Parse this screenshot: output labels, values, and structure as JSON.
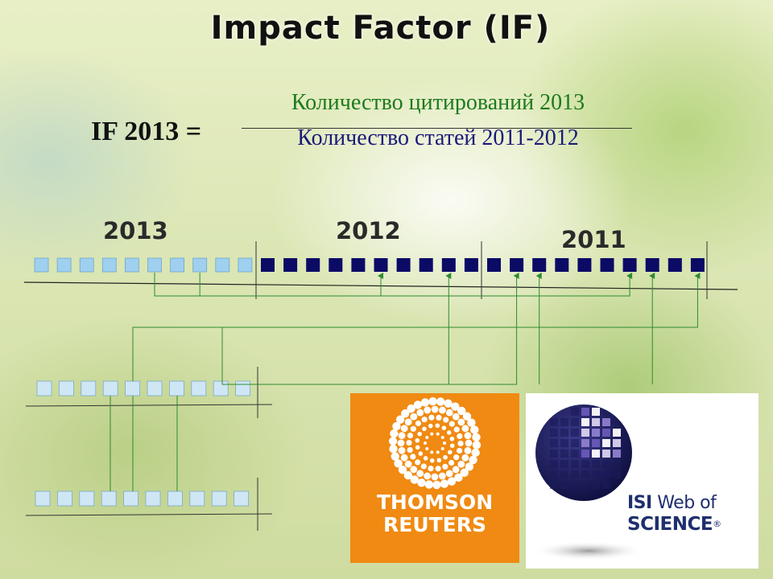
{
  "title": "Impact Factor (IF)",
  "formula": {
    "lhs": "IF 2013 =",
    "numerator": "Количество цитирований 2013",
    "denominator": "Количество статей 2011-2012"
  },
  "years": {
    "y2013": "2013",
    "y2012": "2012",
    "y2011": "2011"
  },
  "colors": {
    "light_box": "#9fd0ef",
    "dark_box": "#0b0b66",
    "link": "#2e8b2e",
    "numerator": "#1d7a1d",
    "denominator": "#1a1a7a"
  },
  "timeline": {
    "light_boxes": 10,
    "dark_boxes": 20
  },
  "logos": {
    "thomson_reuters": {
      "line1": "THOMSON",
      "line2": "REUTERS",
      "color": "#f08a12"
    },
    "isi": {
      "line1_bold": "ISI",
      "line1_rest": " Web of",
      "line2": "SCIENCE",
      "mark": "®"
    }
  }
}
